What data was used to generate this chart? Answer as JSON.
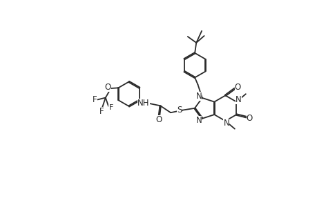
{
  "background_color": "#ffffff",
  "line_color": "#2a2a2a",
  "line_width": 1.3,
  "font_size": 8.5,
  "figsize": [
    4.6,
    3.0
  ],
  "dpi": 100,
  "xlim": [
    0,
    10
  ],
  "ylim": [
    0,
    6.5
  ]
}
